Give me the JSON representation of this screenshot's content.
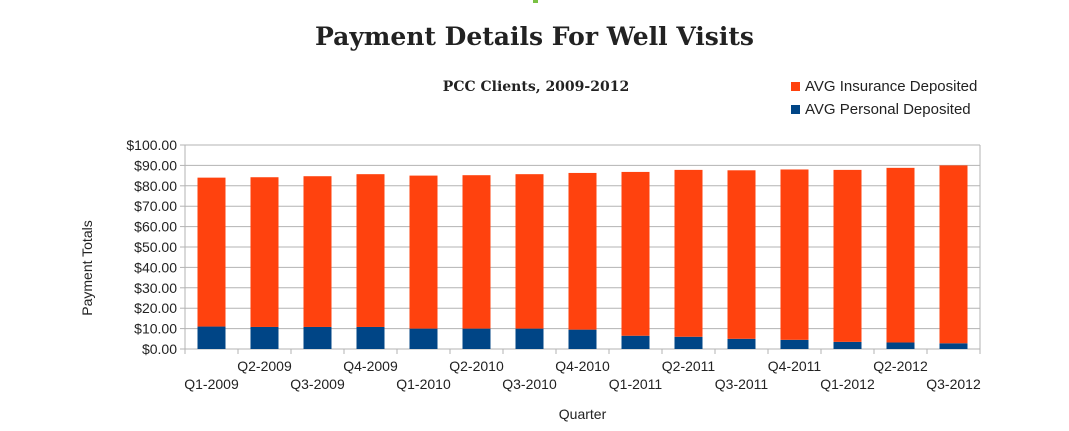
{
  "chart_data": {
    "type": "bar",
    "stacked": true,
    "title": "Payment Details For Well Visits",
    "subtitle": "PCC Clients, 2009-2012",
    "xlabel": "Quarter",
    "ylabel": "Payment Totals",
    "ylim": [
      0,
      100
    ],
    "yticks": [
      "$0.00",
      "$10.00",
      "$20.00",
      "$30.00",
      "$40.00",
      "$50.00",
      "$60.00",
      "$70.00",
      "$80.00",
      "$90.00",
      "$100.00"
    ],
    "grid": true,
    "legend_position": "top-right",
    "categories": [
      "Q1-2009",
      "Q2-2009",
      "Q3-2009",
      "Q4-2009",
      "Q1-2010",
      "Q2-2010",
      "Q3-2010",
      "Q4-2010",
      "Q1-2011",
      "Q2-2011",
      "Q3-2011",
      "Q4-2011",
      "Q1-2012",
      "Q2-2012",
      "Q3-2012"
    ],
    "series": [
      {
        "name": "AVG Personal Deposited",
        "color": "#004586",
        "values": [
          11.0,
          10.8,
          10.8,
          10.8,
          10.0,
          10.0,
          10.0,
          9.5,
          6.5,
          6.0,
          5.0,
          4.5,
          3.5,
          3.2,
          2.8
        ]
      },
      {
        "name": "AVG Insurance Deposited",
        "color": "#ff420e",
        "values": [
          73.0,
          73.4,
          73.9,
          74.9,
          75.0,
          75.2,
          75.7,
          76.8,
          80.3,
          81.8,
          82.6,
          83.5,
          84.3,
          85.6,
          87.2
        ]
      }
    ]
  }
}
